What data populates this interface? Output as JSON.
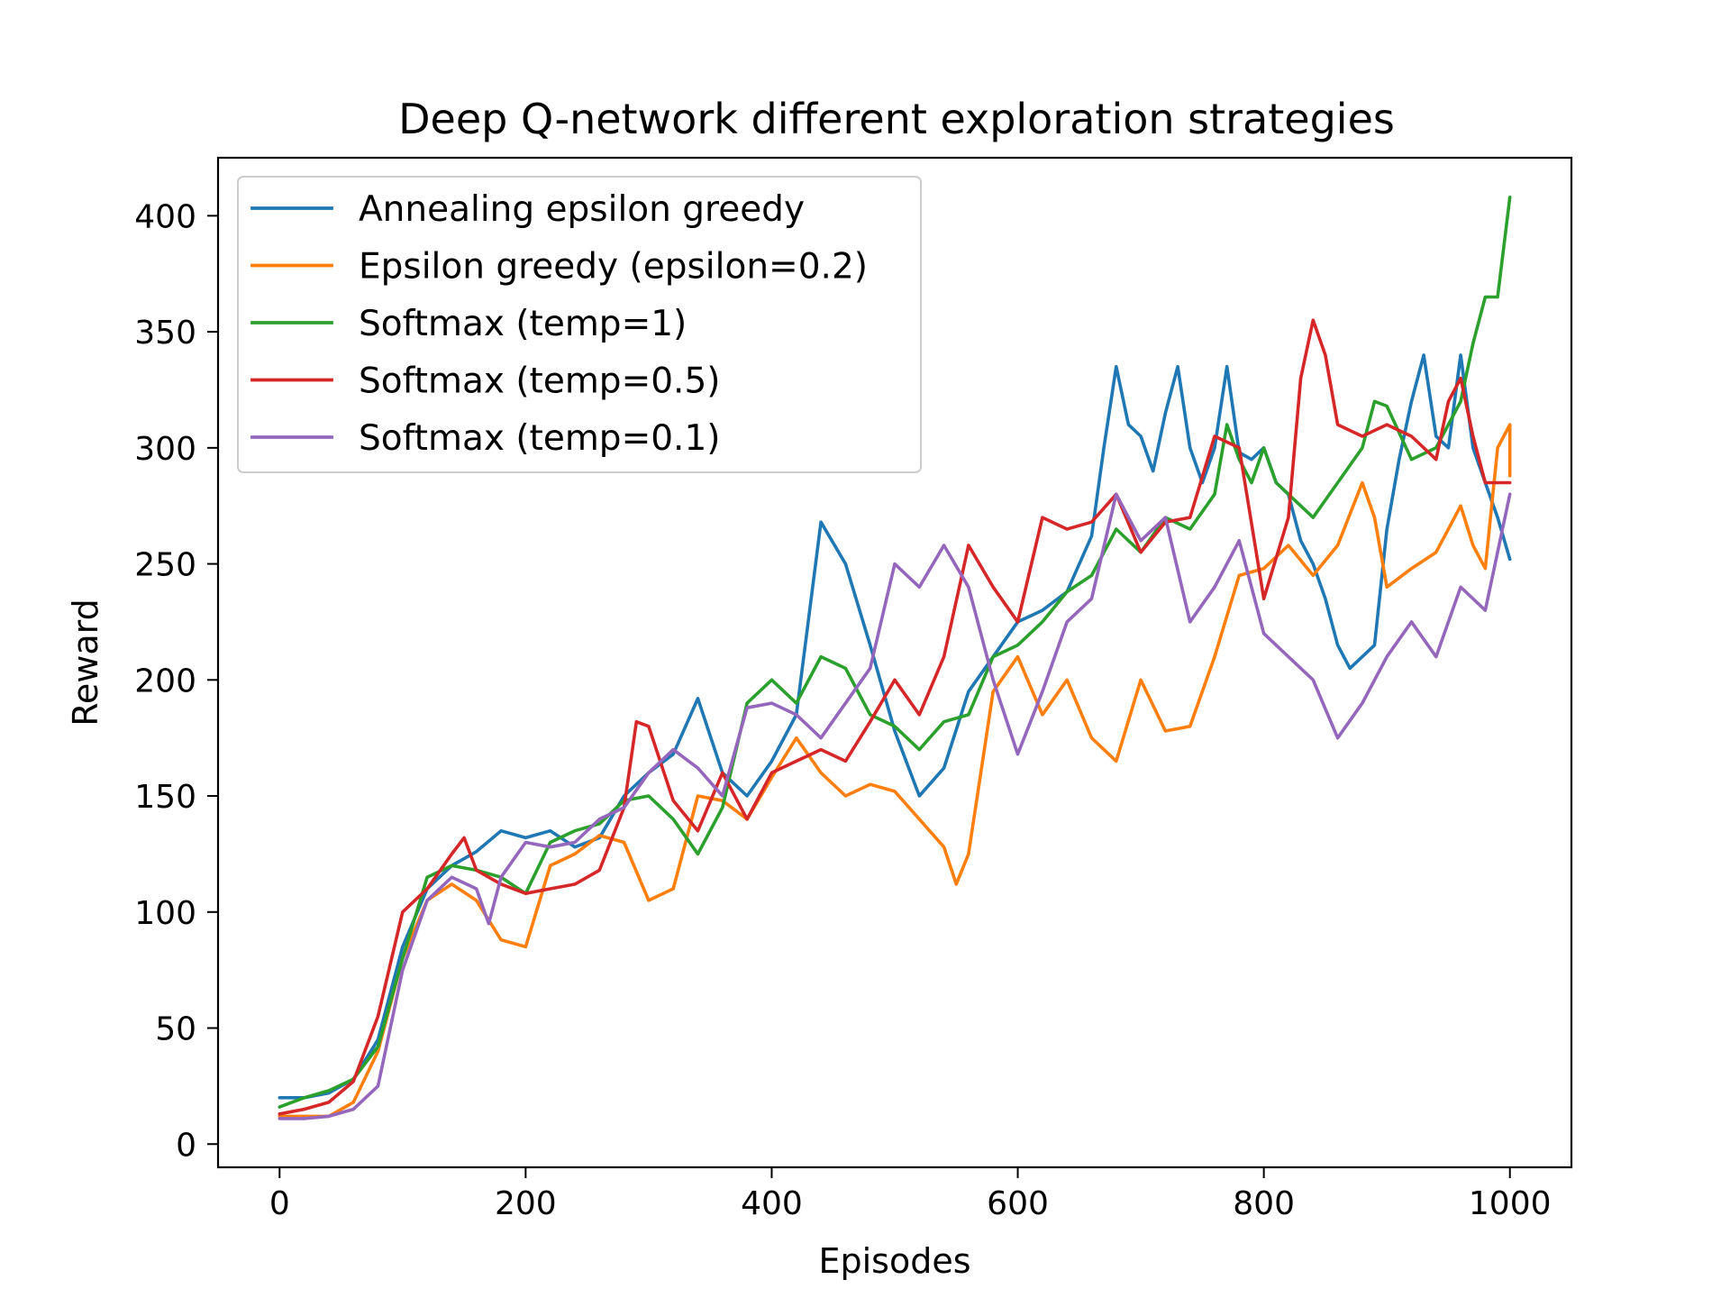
{
  "chart_data": {
    "type": "line",
    "title": "Deep Q-network different exploration strategies",
    "xlabel": "Episodes",
    "ylabel": "Reward",
    "xlim": [
      -50,
      1050
    ],
    "ylim": [
      -10,
      425
    ],
    "xticks": [
      0,
      200,
      400,
      600,
      800,
      1000
    ],
    "yticks": [
      0,
      50,
      100,
      150,
      200,
      250,
      300,
      350,
      400
    ],
    "grid": false,
    "legend_position": "upper-left",
    "series": [
      {
        "name": "Annealing epsilon greedy",
        "color": "#1f77b4",
        "points": [
          [
            0,
            20
          ],
          [
            20,
            20
          ],
          [
            40,
            22
          ],
          [
            60,
            28
          ],
          [
            80,
            45
          ],
          [
            100,
            85
          ],
          [
            120,
            110
          ],
          [
            140,
            120
          ],
          [
            160,
            126
          ],
          [
            180,
            135
          ],
          [
            200,
            132
          ],
          [
            220,
            135
          ],
          [
            240,
            128
          ],
          [
            260,
            132
          ],
          [
            280,
            150
          ],
          [
            300,
            160
          ],
          [
            320,
            168
          ],
          [
            340,
            192
          ],
          [
            360,
            160
          ],
          [
            380,
            150
          ],
          [
            400,
            165
          ],
          [
            420,
            185
          ],
          [
            440,
            268
          ],
          [
            460,
            250
          ],
          [
            480,
            215
          ],
          [
            500,
            178
          ],
          [
            520,
            150
          ],
          [
            540,
            162
          ],
          [
            560,
            195
          ],
          [
            580,
            210
          ],
          [
            600,
            225
          ],
          [
            620,
            230
          ],
          [
            640,
            238
          ],
          [
            660,
            262
          ],
          [
            670,
            300
          ],
          [
            680,
            335
          ],
          [
            690,
            310
          ],
          [
            700,
            305
          ],
          [
            710,
            290
          ],
          [
            720,
            315
          ],
          [
            730,
            335
          ],
          [
            740,
            300
          ],
          [
            750,
            285
          ],
          [
            760,
            300
          ],
          [
            770,
            335
          ],
          [
            780,
            298
          ],
          [
            790,
            295
          ],
          [
            800,
            300
          ],
          [
            810,
            285
          ],
          [
            820,
            280
          ],
          [
            830,
            260
          ],
          [
            840,
            250
          ],
          [
            850,
            235
          ],
          [
            860,
            215
          ],
          [
            870,
            205
          ],
          [
            880,
            210
          ],
          [
            890,
            215
          ],
          [
            900,
            265
          ],
          [
            910,
            295
          ],
          [
            920,
            320
          ],
          [
            930,
            340
          ],
          [
            940,
            305
          ],
          [
            950,
            300
          ],
          [
            960,
            340
          ],
          [
            970,
            300
          ],
          [
            980,
            285
          ],
          [
            990,
            270
          ],
          [
            1000,
            252
          ]
        ]
      },
      {
        "name": "Epsilon greedy (epsilon=0.2)",
        "color": "#ff7f0e",
        "points": [
          [
            0,
            12
          ],
          [
            20,
            12
          ],
          [
            40,
            12
          ],
          [
            60,
            18
          ],
          [
            80,
            40
          ],
          [
            100,
            80
          ],
          [
            120,
            105
          ],
          [
            140,
            112
          ],
          [
            160,
            105
          ],
          [
            180,
            88
          ],
          [
            200,
            85
          ],
          [
            220,
            120
          ],
          [
            240,
            125
          ],
          [
            260,
            133
          ],
          [
            280,
            130
          ],
          [
            300,
            105
          ],
          [
            320,
            110
          ],
          [
            340,
            150
          ],
          [
            360,
            148
          ],
          [
            380,
            140
          ],
          [
            400,
            158
          ],
          [
            420,
            175
          ],
          [
            440,
            160
          ],
          [
            460,
            150
          ],
          [
            480,
            155
          ],
          [
            500,
            152
          ],
          [
            520,
            140
          ],
          [
            540,
            128
          ],
          [
            550,
            112
          ],
          [
            560,
            125
          ],
          [
            580,
            195
          ],
          [
            600,
            210
          ],
          [
            620,
            185
          ],
          [
            640,
            200
          ],
          [
            660,
            175
          ],
          [
            680,
            165
          ],
          [
            700,
            200
          ],
          [
            720,
            178
          ],
          [
            740,
            180
          ],
          [
            760,
            210
          ],
          [
            780,
            245
          ],
          [
            800,
            248
          ],
          [
            820,
            258
          ],
          [
            840,
            245
          ],
          [
            860,
            258
          ],
          [
            880,
            285
          ],
          [
            890,
            270
          ],
          [
            900,
            240
          ],
          [
            920,
            248
          ],
          [
            940,
            255
          ],
          [
            960,
            275
          ],
          [
            970,
            258
          ],
          [
            980,
            248
          ],
          [
            990,
            300
          ],
          [
            1000,
            310
          ],
          [
            1000,
            288
          ]
        ]
      },
      {
        "name": "Softmax (temp=1)",
        "color": "#2ca02c",
        "points": [
          [
            0,
            16
          ],
          [
            20,
            20
          ],
          [
            40,
            23
          ],
          [
            60,
            28
          ],
          [
            80,
            42
          ],
          [
            100,
            80
          ],
          [
            120,
            115
          ],
          [
            140,
            120
          ],
          [
            160,
            118
          ],
          [
            180,
            115
          ],
          [
            200,
            108
          ],
          [
            220,
            130
          ],
          [
            240,
            135
          ],
          [
            260,
            138
          ],
          [
            280,
            148
          ],
          [
            300,
            150
          ],
          [
            320,
            140
          ],
          [
            340,
            125
          ],
          [
            360,
            145
          ],
          [
            380,
            190
          ],
          [
            400,
            200
          ],
          [
            420,
            190
          ],
          [
            440,
            210
          ],
          [
            460,
            205
          ],
          [
            480,
            185
          ],
          [
            500,
            180
          ],
          [
            520,
            170
          ],
          [
            540,
            182
          ],
          [
            560,
            185
          ],
          [
            580,
            210
          ],
          [
            600,
            215
          ],
          [
            620,
            225
          ],
          [
            640,
            238
          ],
          [
            660,
            245
          ],
          [
            680,
            265
          ],
          [
            700,
            255
          ],
          [
            720,
            270
          ],
          [
            740,
            265
          ],
          [
            760,
            280
          ],
          [
            770,
            310
          ],
          [
            780,
            295
          ],
          [
            790,
            285
          ],
          [
            800,
            300
          ],
          [
            810,
            285
          ],
          [
            820,
            280
          ],
          [
            840,
            270
          ],
          [
            860,
            285
          ],
          [
            880,
            300
          ],
          [
            890,
            320
          ],
          [
            900,
            318
          ],
          [
            920,
            295
          ],
          [
            940,
            300
          ],
          [
            960,
            320
          ],
          [
            970,
            345
          ],
          [
            980,
            365
          ],
          [
            990,
            365
          ],
          [
            1000,
            408
          ]
        ]
      },
      {
        "name": "Softmax (temp=0.5)",
        "color": "#d62728",
        "points": [
          [
            0,
            13
          ],
          [
            20,
            15
          ],
          [
            40,
            18
          ],
          [
            60,
            27
          ],
          [
            80,
            55
          ],
          [
            100,
            100
          ],
          [
            120,
            110
          ],
          [
            140,
            125
          ],
          [
            150,
            132
          ],
          [
            160,
            118
          ],
          [
            180,
            112
          ],
          [
            200,
            108
          ],
          [
            220,
            110
          ],
          [
            240,
            112
          ],
          [
            260,
            118
          ],
          [
            280,
            145
          ],
          [
            290,
            182
          ],
          [
            300,
            180
          ],
          [
            320,
            148
          ],
          [
            340,
            135
          ],
          [
            360,
            160
          ],
          [
            380,
            140
          ],
          [
            400,
            160
          ],
          [
            420,
            165
          ],
          [
            440,
            170
          ],
          [
            460,
            165
          ],
          [
            480,
            182
          ],
          [
            500,
            200
          ],
          [
            520,
            185
          ],
          [
            540,
            210
          ],
          [
            560,
            258
          ],
          [
            580,
            240
          ],
          [
            600,
            225
          ],
          [
            620,
            270
          ],
          [
            640,
            265
          ],
          [
            660,
            268
          ],
          [
            680,
            280
          ],
          [
            700,
            255
          ],
          [
            720,
            268
          ],
          [
            740,
            270
          ],
          [
            760,
            305
          ],
          [
            780,
            300
          ],
          [
            800,
            235
          ],
          [
            820,
            270
          ],
          [
            830,
            330
          ],
          [
            840,
            355
          ],
          [
            850,
            340
          ],
          [
            860,
            310
          ],
          [
            880,
            305
          ],
          [
            900,
            310
          ],
          [
            920,
            305
          ],
          [
            940,
            295
          ],
          [
            950,
            320
          ],
          [
            960,
            330
          ],
          [
            970,
            305
          ],
          [
            980,
            285
          ],
          [
            1000,
            285
          ]
        ]
      },
      {
        "name": "Softmax (temp=0.1)",
        "color": "#9467bd",
        "points": [
          [
            0,
            11
          ],
          [
            20,
            11
          ],
          [
            40,
            12
          ],
          [
            60,
            15
          ],
          [
            80,
            25
          ],
          [
            100,
            75
          ],
          [
            120,
            105
          ],
          [
            140,
            115
          ],
          [
            160,
            110
          ],
          [
            170,
            95
          ],
          [
            180,
            115
          ],
          [
            200,
            130
          ],
          [
            220,
            128
          ],
          [
            240,
            130
          ],
          [
            260,
            140
          ],
          [
            280,
            145
          ],
          [
            300,
            160
          ],
          [
            320,
            170
          ],
          [
            340,
            162
          ],
          [
            360,
            150
          ],
          [
            380,
            188
          ],
          [
            400,
            190
          ],
          [
            420,
            185
          ],
          [
            440,
            175
          ],
          [
            460,
            190
          ],
          [
            480,
            205
          ],
          [
            500,
            250
          ],
          [
            520,
            240
          ],
          [
            540,
            258
          ],
          [
            560,
            240
          ],
          [
            580,
            200
          ],
          [
            600,
            168
          ],
          [
            620,
            195
          ],
          [
            640,
            225
          ],
          [
            660,
            235
          ],
          [
            680,
            280
          ],
          [
            700,
            260
          ],
          [
            720,
            270
          ],
          [
            740,
            225
          ],
          [
            760,
            240
          ],
          [
            780,
            260
          ],
          [
            800,
            220
          ],
          [
            820,
            210
          ],
          [
            840,
            200
          ],
          [
            860,
            175
          ],
          [
            880,
            190
          ],
          [
            900,
            210
          ],
          [
            920,
            225
          ],
          [
            940,
            210
          ],
          [
            960,
            240
          ],
          [
            980,
            230
          ],
          [
            1000,
            280
          ]
        ]
      }
    ]
  }
}
